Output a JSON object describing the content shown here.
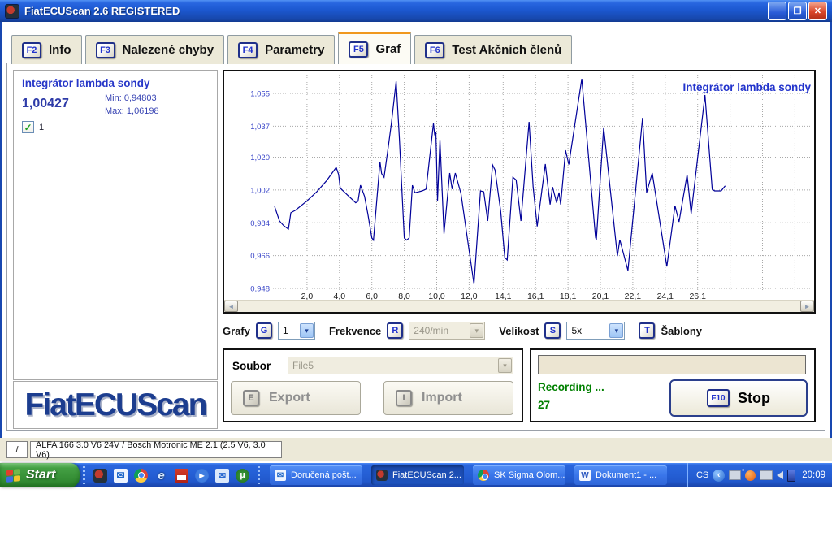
{
  "window": {
    "title": "FiatECUScan 2.6 REGISTERED"
  },
  "icons": {
    "minimize": "_",
    "restore": "❐",
    "close": "✕",
    "dropdown": "▾",
    "scroll_left": "◄",
    "scroll_right": "►",
    "check": "✓",
    "envelope": "✉",
    "ie_e": "e",
    "play": "▶",
    "utorrent_u": "µ",
    "word_w": "W",
    "mail": "✉",
    "chevron_left": "‹"
  },
  "tabs": [
    {
      "key": "F2",
      "label": "Info"
    },
    {
      "key": "F3",
      "label": "Nalezené chyby"
    },
    {
      "key": "F4",
      "label": "Parametry"
    },
    {
      "key": "F5",
      "label": "Graf"
    },
    {
      "key": "F6",
      "label": "Test Akčních členů"
    }
  ],
  "sensor": {
    "name": "Integrátor lambda sondy",
    "value": "1,00427",
    "min": "Min: 0,94803",
    "max": "Max: 1,06198",
    "channel": "1"
  },
  "logo_text": "FiatECUScan",
  "chart_data": {
    "type": "line",
    "title": "Integrátor lambda sondy",
    "xlabel": "",
    "ylabel": "",
    "x_range": [
      0,
      33.4
    ],
    "y_range": [
      0.948,
      1.066
    ],
    "grid": "dotted",
    "line_color": "#000099",
    "y_ticks": [
      {
        "label": "1,055",
        "v": 1.055
      },
      {
        "label": "1,037",
        "v": 1.037
      },
      {
        "label": "1,020",
        "v": 1.02
      },
      {
        "label": "1,002",
        "v": 1.002
      },
      {
        "label": "0,984",
        "v": 0.984
      },
      {
        "label": "0,966",
        "v": 0.966
      },
      {
        "label": "0,948",
        "v": 0.948
      }
    ],
    "x_ticks": [
      {
        "label": "2,0",
        "t": 2.0
      },
      {
        "label": "4,0",
        "t": 4.0
      },
      {
        "label": "6,0",
        "t": 6.0
      },
      {
        "label": "8,0",
        "t": 8.0
      },
      {
        "label": "10,0",
        "t": 10.0
      },
      {
        "label": "12,0",
        "t": 12.0
      },
      {
        "label": "14,1",
        "t": 14.1
      },
      {
        "label": "16,1",
        "t": 16.1
      },
      {
        "label": "18,1",
        "t": 18.1
      },
      {
        "label": "20,1",
        "t": 20.1
      },
      {
        "label": "22,1",
        "t": 22.1
      },
      {
        "label": "24,1",
        "t": 24.1
      },
      {
        "label": "26,1",
        "t": 26.1
      }
    ],
    "extra_gridlines_t": [
      28.1,
      30.1,
      32.1
    ],
    "series": [
      {
        "name": "Integrátor lambda sondy",
        "points": [
          [
            0.0,
            0.993
          ],
          [
            0.3,
            0.985
          ],
          [
            0.55,
            0.9825
          ],
          [
            0.85,
            0.9805
          ],
          [
            1.0,
            0.9895
          ],
          [
            1.3,
            0.991
          ],
          [
            2.0,
            0.996
          ],
          [
            2.6,
            1.001
          ],
          [
            3.2,
            1.007
          ],
          [
            3.8,
            1.0144
          ],
          [
            3.95,
            1.0105
          ],
          [
            4.05,
            1.003
          ],
          [
            4.5,
            0.9992
          ],
          [
            5.0,
            0.995
          ],
          [
            5.15,
            0.9958
          ],
          [
            5.3,
            1.0046
          ],
          [
            5.55,
            0.9985
          ],
          [
            5.75,
            0.989
          ],
          [
            6.0,
            0.9757
          ],
          [
            6.1,
            0.9745
          ],
          [
            6.5,
            1.0175
          ],
          [
            6.6,
            1.011
          ],
          [
            6.75,
            1.009
          ],
          [
            7.0,
            1.025
          ],
          [
            7.2,
            1.038
          ],
          [
            7.5,
            1.0617
          ],
          [
            7.7,
            1.03
          ],
          [
            8.0,
            0.9757
          ],
          [
            8.15,
            0.9745
          ],
          [
            8.3,
            0.9757
          ],
          [
            8.5,
            1.0046
          ],
          [
            8.65,
            1.0005
          ],
          [
            8.9,
            1.001
          ],
          [
            9.1,
            1.0015
          ],
          [
            9.35,
            1.0025
          ],
          [
            9.8,
            1.0385
          ],
          [
            9.88,
            1.032
          ],
          [
            9.95,
            1.034
          ],
          [
            10.05,
            0.996
          ],
          [
            10.2,
            1.0296
          ],
          [
            10.45,
            0.978
          ],
          [
            10.8,
            1.0113
          ],
          [
            10.95,
            1.0025
          ],
          [
            11.15,
            1.0113
          ],
          [
            11.5,
            1.0
          ],
          [
            11.9,
            0.975
          ],
          [
            12.3,
            0.9503
          ],
          [
            12.7,
            1.0015
          ],
          [
            12.9,
            1.001
          ],
          [
            13.15,
            0.985
          ],
          [
            13.45,
            1.0157
          ],
          [
            13.6,
            1.013
          ],
          [
            13.95,
            0.9903
          ],
          [
            14.2,
            0.965
          ],
          [
            14.35,
            0.9636
          ],
          [
            14.7,
            1.009
          ],
          [
            14.9,
            1.0075
          ],
          [
            15.2,
            0.985
          ],
          [
            15.7,
            1.0394
          ],
          [
            15.95,
            1.0037
          ],
          [
            16.2,
            0.982
          ],
          [
            16.7,
            1.0162
          ],
          [
            17.0,
            0.994
          ],
          [
            17.15,
            1.0037
          ],
          [
            17.4,
            0.995
          ],
          [
            17.55,
            1.0006
          ],
          [
            17.65,
            0.994
          ],
          [
            17.95,
            1.0238
          ],
          [
            18.15,
            1.016
          ],
          [
            18.95,
            1.063
          ],
          [
            19.8,
            0.976
          ],
          [
            19.85,
            0.9747
          ],
          [
            20.3,
            1.0363
          ],
          [
            21.15,
            0.9658
          ],
          [
            21.3,
            0.9747
          ],
          [
            21.8,
            0.9578
          ],
          [
            22.7,
            1.0416
          ],
          [
            22.95,
            1.0006
          ],
          [
            23.3,
            1.0113
          ],
          [
            24.2,
            0.96
          ],
          [
            24.7,
            0.9934
          ],
          [
            24.95,
            0.9845
          ],
          [
            25.45,
            1.0104
          ],
          [
            25.7,
            0.989
          ],
          [
            26.55,
            1.0541
          ],
          [
            27.0,
            1.0024
          ],
          [
            27.15,
            1.0015
          ],
          [
            27.55,
            1.0015
          ],
          [
            27.8,
            1.0043
          ]
        ]
      }
    ]
  },
  "controls": {
    "grafy_label": "Grafy",
    "grafy_key": "G",
    "grafy_value": "1",
    "frekvence_label": "Frekvence",
    "frekvence_key": "R",
    "frekvence_value": "240/min",
    "velikost_label": "Velikost",
    "velikost_key": "S",
    "velikost_value": "5x",
    "sablony_key": "T",
    "sablony_label": "Šablony"
  },
  "file_panel": {
    "label": "Soubor",
    "value": "File5",
    "export_key": "E",
    "export_label": "Export",
    "import_key": "I",
    "import_label": "Import"
  },
  "recording": {
    "status": "Recording ...",
    "counter": "27",
    "stop_key": "F10",
    "stop_label": "Stop"
  },
  "status_bar": {
    "mode": "/",
    "vehicle": "ALFA 166 3.0 V6 24V / Bosch Motronic ME 2.1 (2.5 V6, 3.0 V6)"
  },
  "taskbar": {
    "start_label": "Start",
    "tasks": [
      {
        "label": "Doručená pošt...",
        "icon": "outlook-express",
        "active": false
      },
      {
        "label": "FiatECUScan 2...",
        "icon": "fiatecuscan",
        "active": true
      },
      {
        "label": "SK Sigma Olom...",
        "icon": "chrome",
        "active": false
      },
      {
        "label": "Dokument1 - ...",
        "icon": "word",
        "active": false
      }
    ],
    "tray": {
      "lang": "CS",
      "time": "20:09"
    }
  },
  "colors": {
    "accent_blue": "#2233cc",
    "chart_line": "#000099",
    "record_green": "#008000",
    "taskbar_blue": "#2560d6",
    "window_beige": "#ece9d8",
    "active_tab_orange": "#f0981e"
  }
}
